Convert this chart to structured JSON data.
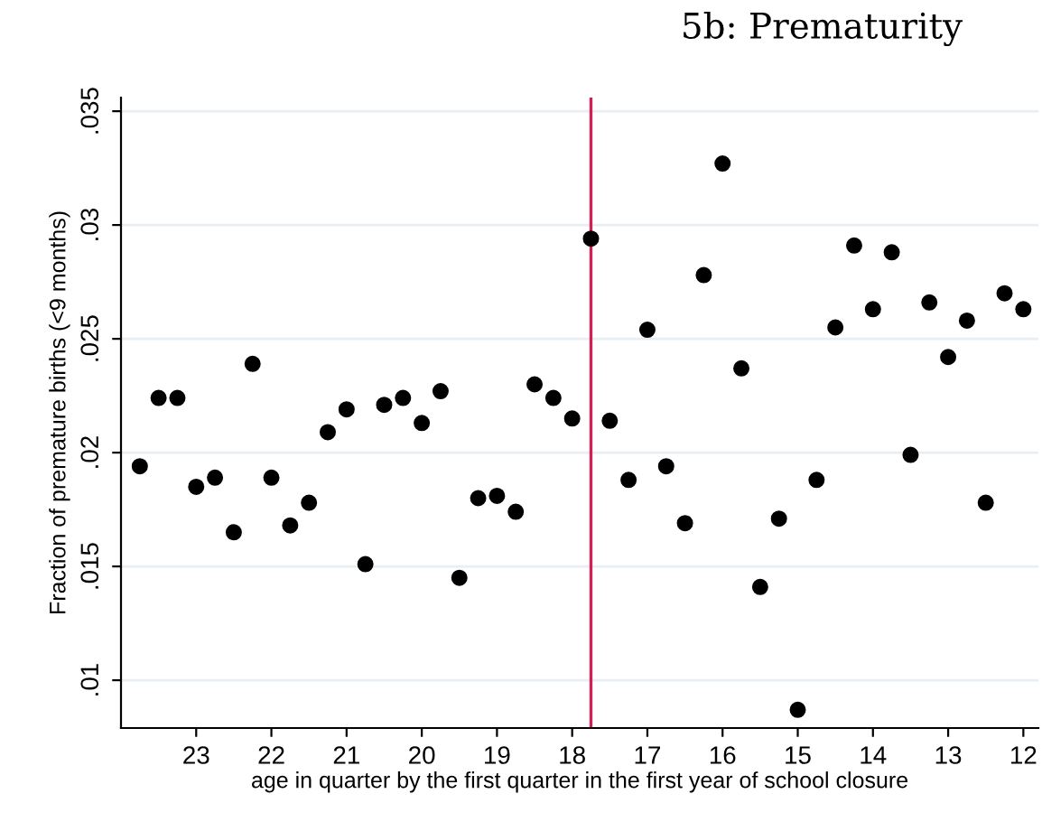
{
  "chart_data": {
    "type": "scatter",
    "title": "5b: Prematurity",
    "xlabel": "age in quarter by the first quarter in the first year of school closure",
    "ylabel": "Fraction of premature births (<9 months)",
    "x": [
      23.75,
      23.5,
      23.25,
      23,
      22.75,
      22.5,
      22.25,
      22,
      21.75,
      21.5,
      21.25,
      21,
      20.75,
      20.5,
      20.25,
      20,
      19.75,
      19.5,
      19.25,
      19,
      18.75,
      18.5,
      18.25,
      18,
      17.75,
      17.5,
      17.25,
      17,
      16.75,
      16.5,
      16.25,
      16,
      15.75,
      15.5,
      15.25,
      15,
      14.75,
      14.5,
      14.25,
      14,
      13.75,
      13.5,
      13.25,
      13,
      12.75,
      12.5,
      12.25,
      12
    ],
    "series": [
      {
        "color": "#000000",
        "values": [
          0.0194,
          0.0224,
          0.0224,
          0.0185,
          0.0189,
          0.0165,
          0.0239,
          0.0189,
          0.0168,
          0.0178,
          0.0209,
          0.0219,
          0.0151,
          0.0221,
          0.0224,
          0.0213,
          0.0227,
          0.0145,
          0.018,
          0.0181,
          0.0174,
          0.023,
          0.0224,
          0.0215,
          0.0294,
          0.0214,
          0.0188,
          0.0254,
          0.0194,
          0.0169,
          0.0278,
          0.0327,
          0.0237,
          0.0141,
          0.0171,
          0.0087,
          0.0188,
          0.0255,
          0.0291,
          0.0263,
          0.0288,
          0.0199,
          0.0266,
          0.0242,
          0.0258,
          0.0178,
          0.027,
          0.0263
        ]
      }
    ],
    "xlim": [
      24,
      11.8
    ],
    "xticks": [
      23,
      22,
      21,
      20,
      19,
      18,
      17,
      16,
      15,
      14,
      13,
      12
    ],
    "ylim": [
      0.0079,
      0.0356
    ],
    "yticks": [
      {
        "value": 0.01,
        "label": ".01"
      },
      {
        "value": 0.015,
        "label": ".015"
      },
      {
        "value": 0.02,
        "label": ".02"
      },
      {
        "value": 0.025,
        "label": ".025"
      },
      {
        "value": 0.03,
        "label": ".03"
      },
      {
        "value": 0.035,
        "label": ".035"
      }
    ],
    "ref_lines": [
      {
        "axis": "x",
        "value": 17.75,
        "color": "#d21f55"
      }
    ],
    "grid": "y",
    "marker": "circle"
  }
}
